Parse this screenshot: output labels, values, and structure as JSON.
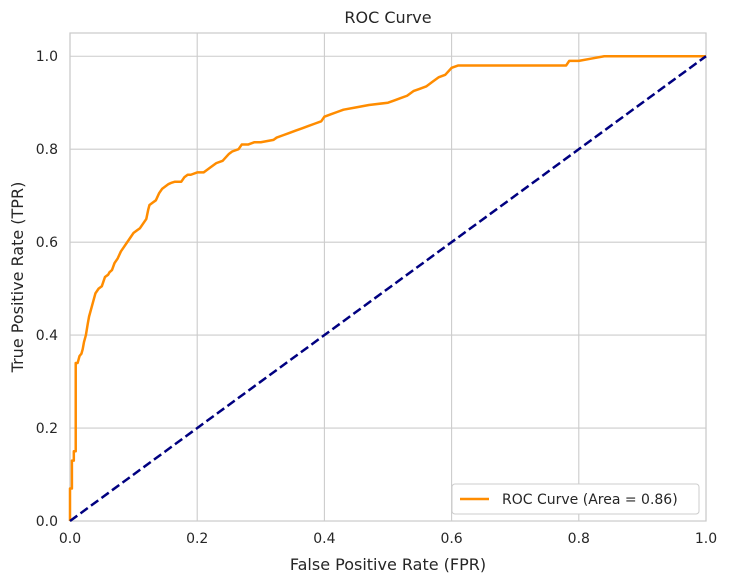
{
  "chart_data": {
    "type": "line",
    "title": "ROC Curve",
    "xlabel": "False Positive Rate (FPR)",
    "ylabel": "True Positive Rate (TPR)",
    "xlim": [
      0.0,
      1.0
    ],
    "ylim": [
      0.0,
      1.05
    ],
    "x_ticks": [
      0.0,
      0.2,
      0.4,
      0.6,
      0.8,
      1.0
    ],
    "x_tick_labels": [
      "0.0",
      "0.2",
      "0.4",
      "0.6",
      "0.8",
      "1.0"
    ],
    "y_ticks": [
      0.0,
      0.2,
      0.4,
      0.6,
      0.8,
      1.0
    ],
    "y_tick_labels": [
      "0.0",
      "0.2",
      "0.4",
      "0.6",
      "0.8",
      "1.0"
    ],
    "grid": true,
    "legend_position": "lower-right",
    "series": [
      {
        "name": "ROC Curve (Area = 0.86)",
        "color": "#ff8c00",
        "style": "solid",
        "x": [
          0.0,
          0.0,
          0.003,
          0.003,
          0.006,
          0.006,
          0.009,
          0.009,
          0.012,
          0.015,
          0.018,
          0.02,
          0.022,
          0.025,
          0.028,
          0.03,
          0.033,
          0.036,
          0.04,
          0.045,
          0.05,
          0.055,
          0.06,
          0.062,
          0.066,
          0.07,
          0.075,
          0.08,
          0.085,
          0.09,
          0.095,
          0.1,
          0.105,
          0.11,
          0.115,
          0.12,
          0.123,
          0.125,
          0.13,
          0.135,
          0.14,
          0.145,
          0.15,
          0.155,
          0.16,
          0.165,
          0.17,
          0.175,
          0.18,
          0.185,
          0.19,
          0.2,
          0.21,
          0.215,
          0.22,
          0.23,
          0.24,
          0.25,
          0.255,
          0.265,
          0.27,
          0.28,
          0.29,
          0.3,
          0.32,
          0.325,
          0.335,
          0.345,
          0.355,
          0.365,
          0.375,
          0.385,
          0.395,
          0.4,
          0.41,
          0.42,
          0.43,
          0.45,
          0.47,
          0.5,
          0.51,
          0.52,
          0.53,
          0.54,
          0.55,
          0.56,
          0.57,
          0.58,
          0.59,
          0.6,
          0.61,
          0.64,
          0.7,
          0.75,
          0.78,
          0.785,
          0.8,
          0.82,
          0.84,
          0.87,
          0.9,
          0.95,
          1.0
        ],
        "y": [
          0.0,
          0.07,
          0.07,
          0.13,
          0.13,
          0.15,
          0.15,
          0.34,
          0.34,
          0.355,
          0.36,
          0.37,
          0.385,
          0.4,
          0.425,
          0.44,
          0.455,
          0.47,
          0.49,
          0.5,
          0.505,
          0.525,
          0.53,
          0.535,
          0.54,
          0.555,
          0.565,
          0.58,
          0.59,
          0.6,
          0.61,
          0.62,
          0.625,
          0.63,
          0.64,
          0.65,
          0.67,
          0.68,
          0.685,
          0.69,
          0.705,
          0.715,
          0.72,
          0.725,
          0.728,
          0.73,
          0.73,
          0.73,
          0.74,
          0.745,
          0.745,
          0.75,
          0.75,
          0.755,
          0.76,
          0.77,
          0.775,
          0.79,
          0.795,
          0.8,
          0.81,
          0.81,
          0.815,
          0.815,
          0.82,
          0.825,
          0.83,
          0.835,
          0.84,
          0.845,
          0.85,
          0.855,
          0.86,
          0.87,
          0.875,
          0.88,
          0.885,
          0.89,
          0.895,
          0.9,
          0.905,
          0.91,
          0.915,
          0.925,
          0.93,
          0.935,
          0.945,
          0.955,
          0.96,
          0.975,
          0.98,
          0.98,
          0.98,
          0.98,
          0.98,
          0.99,
          0.99,
          0.995,
          1.0,
          1.0,
          1.0,
          1.0,
          1.0
        ]
      },
      {
        "name": "",
        "color": "#000080",
        "style": "dashed",
        "x": [
          0.0,
          1.0
        ],
        "y": [
          0.0,
          1.0
        ]
      }
    ]
  }
}
